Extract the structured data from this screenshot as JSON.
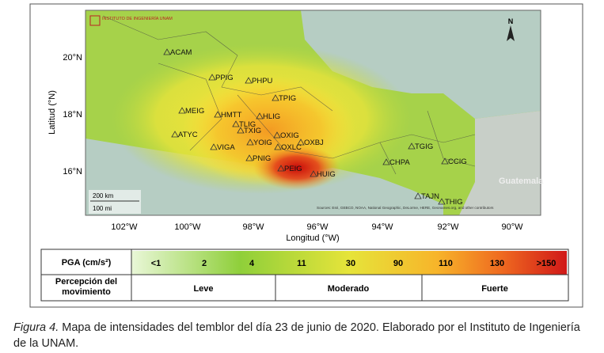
{
  "map": {
    "logo": "INSTITUTO DE INGENIERÍA UNAM",
    "north": "N",
    "y_title": "Latitud (°N)",
    "x_title": "Longitud (°W)",
    "lat_labels": [
      "20°N",
      "18°N",
      "16°N"
    ],
    "lon_labels": [
      "102°W",
      "100°W",
      "98°W",
      "96°W",
      "94°W",
      "92°W",
      "90°W"
    ],
    "stations": [
      "ACAM",
      "PPIG",
      "PHPU",
      "TPIG",
      "MEIG",
      "HMTT",
      "HLIG",
      "TLIG",
      "TXIG",
      "OXIG",
      "OXBJ",
      "YOIG",
      "OXLC",
      "ATYC",
      "VIGA",
      "PNIG",
      "PEIG",
      "HUIG",
      "TGIG",
      "CHPA",
      "CCIG",
      "TAJN",
      "THIG"
    ],
    "country": "Guatemala",
    "scale_km": "200 km",
    "scale_mi": "100 mi",
    "sources": "Sources: Esri, GEBCO, NOAA, National Geographic, DeLorme, HERE, Geonames.org, and other contributors"
  },
  "legend": {
    "pga_title": "PGA (cm/s²)",
    "pga_values": [
      "<1",
      "2",
      "4",
      "11",
      "30",
      "90",
      "110",
      "130",
      ">150"
    ],
    "perception_title": "Percepción del movimiento",
    "perception_levels": [
      "Leve",
      "Moderado",
      "Fuerte"
    ]
  },
  "caption": {
    "label": "Figura 4.",
    "text": "Mapa de intensidades del temblor del día 23 de junio de 2020. Elaborado por el Instituto de Ingeniería de la UNAM."
  }
}
